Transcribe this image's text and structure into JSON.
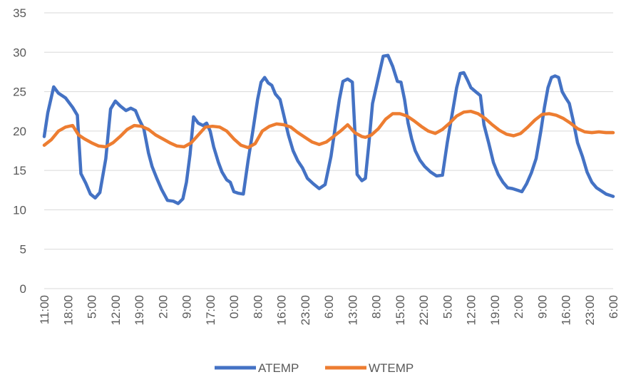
{
  "chart_data": {
    "type": "line",
    "title": "",
    "xlabel": "",
    "ylabel": "",
    "ylim": [
      0,
      35
    ],
    "yticks": [
      0,
      5,
      10,
      15,
      20,
      25,
      30,
      35
    ],
    "grid": true,
    "legend_position": "bottom",
    "x_tick_labels": [
      "11:00",
      "18:00",
      "5:00",
      "12:00",
      "19:00",
      "2:00",
      "9:00",
      "17:00",
      "0:00",
      "8:00",
      "16:00",
      "23:00",
      "6:00",
      "13:00",
      "8:00",
      "15:00",
      "22:00",
      "5:00",
      "12:00",
      "19:00",
      "2:00",
      "9:00",
      "16:00",
      "23:00",
      "6:00"
    ],
    "series": [
      {
        "name": "ATEMP",
        "color": "#4472c4",
        "x": [
          0,
          0.15,
          0.4,
          0.6,
          0.9,
          1.2,
          1.4,
          1.55,
          1.75,
          1.95,
          2.15,
          2.35,
          2.6,
          2.8,
          3.0,
          3.2,
          3.45,
          3.65,
          3.85,
          4.0,
          4.2,
          4.4,
          4.55,
          4.75,
          4.95,
          5.2,
          5.45,
          5.65,
          5.85,
          6.0,
          6.15,
          6.3,
          6.5,
          6.7,
          6.85,
          7.0,
          7.15,
          7.35,
          7.5,
          7.7,
          7.85,
          8.0,
          8.2,
          8.4,
          8.6,
          8.8,
          9.0,
          9.15,
          9.3,
          9.45,
          9.6,
          9.75,
          9.95,
          10.1,
          10.3,
          10.5,
          10.7,
          10.9,
          11.1,
          11.35,
          11.6,
          11.85,
          12.1,
          12.3,
          12.45,
          12.6,
          12.8,
          13.0,
          13.2,
          13.4,
          13.55,
          13.7,
          13.85,
          14.0,
          14.15,
          14.3,
          14.5,
          14.7,
          14.9,
          15.05,
          15.2,
          15.35,
          15.5,
          15.65,
          15.85,
          16.05,
          16.3,
          16.55,
          16.8,
          17.0,
          17.2,
          17.4,
          17.55,
          17.7,
          17.85,
          18.0,
          18.2,
          18.4,
          18.55,
          18.75,
          18.95,
          19.15,
          19.35,
          19.55,
          19.75,
          19.95,
          20.15,
          20.35,
          20.55,
          20.75,
          20.95,
          21.1,
          21.25,
          21.4,
          21.55,
          21.7,
          21.85,
          22.0,
          22.15,
          22.3,
          22.5,
          22.7,
          22.9,
          23.1,
          23.3,
          23.5,
          23.7,
          23.9,
          24.0
        ],
        "values": [
          19.3,
          22.3,
          25.6,
          24.8,
          24.2,
          23.0,
          22.0,
          14.6,
          13.4,
          12.0,
          11.5,
          12.2,
          16.5,
          22.8,
          23.8,
          23.2,
          22.6,
          22.9,
          22.6,
          21.5,
          20.3,
          17.2,
          15.5,
          14.0,
          12.6,
          11.2,
          11.1,
          10.8,
          11.4,
          13.5,
          17.0,
          21.8,
          21.0,
          20.7,
          21.0,
          20.0,
          18.0,
          16.0,
          14.8,
          13.8,
          13.5,
          12.3,
          12.1,
          12.0,
          16.2,
          20.0,
          24.0,
          26.2,
          26.8,
          26.1,
          25.8,
          24.7,
          24.0,
          22.1,
          19.5,
          17.5,
          16.2,
          15.3,
          14.0,
          13.3,
          12.7,
          13.2,
          16.8,
          21.0,
          24.0,
          26.3,
          26.6,
          26.2,
          14.5,
          13.7,
          14.0,
          18.5,
          23.5,
          25.5,
          27.5,
          29.5,
          29.6,
          28.2,
          26.3,
          26.2,
          24.0,
          21.0,
          19.0,
          17.5,
          16.3,
          15.5,
          14.8,
          14.3,
          14.4,
          18.5,
          22.0,
          25.5,
          27.3,
          27.4,
          26.5,
          25.5,
          25.0,
          24.5,
          20.8,
          18.5,
          16.0,
          14.5,
          13.5,
          12.8,
          12.7,
          12.5,
          12.3,
          13.3,
          14.7,
          16.5,
          20.0,
          23.0,
          25.5,
          26.8,
          27.0,
          26.8,
          25.0,
          24.2,
          23.5,
          21.5,
          18.5,
          16.8,
          14.8,
          13.5,
          12.8,
          12.4,
          12.0,
          11.8,
          11.7
        ]
      },
      {
        "name": "WTEMP",
        "color": "#ed7d31",
        "x": [
          0,
          0.3,
          0.6,
          0.9,
          1.2,
          1.45,
          1.7,
          2.0,
          2.3,
          2.6,
          2.9,
          3.2,
          3.5,
          3.8,
          4.1,
          4.4,
          4.7,
          5.0,
          5.3,
          5.6,
          5.9,
          6.2,
          6.5,
          6.8,
          7.1,
          7.4,
          7.7,
          8.0,
          8.3,
          8.6,
          8.9,
          9.2,
          9.5,
          9.8,
          10.1,
          10.4,
          10.7,
          11.0,
          11.3,
          11.6,
          11.9,
          12.2,
          12.5,
          12.8,
          13.1,
          13.4,
          13.55,
          13.8,
          14.1,
          14.4,
          14.7,
          15.0,
          15.3,
          15.6,
          15.9,
          16.2,
          16.5,
          16.8,
          17.1,
          17.4,
          17.7,
          18.0,
          18.3,
          18.6,
          18.9,
          19.2,
          19.5,
          19.8,
          20.1,
          20.4,
          20.7,
          21.0,
          21.3,
          21.6,
          21.9,
          22.2,
          22.5,
          22.8,
          23.1,
          23.4,
          23.7,
          24.0
        ],
        "values": [
          18.2,
          18.9,
          20.0,
          20.5,
          20.7,
          19.5,
          19.0,
          18.5,
          18.1,
          18.0,
          18.5,
          19.3,
          20.2,
          20.7,
          20.6,
          20.2,
          19.5,
          19.0,
          18.5,
          18.1,
          18.0,
          18.5,
          19.5,
          20.5,
          20.6,
          20.5,
          20.0,
          19.0,
          18.2,
          17.9,
          18.4,
          20.0,
          20.6,
          20.9,
          20.8,
          20.5,
          19.8,
          19.2,
          18.6,
          18.3,
          18.6,
          19.3,
          20.0,
          20.8,
          19.8,
          19.3,
          19.2,
          19.5,
          20.3,
          21.5,
          22.2,
          22.2,
          21.9,
          21.3,
          20.6,
          20.0,
          19.7,
          20.2,
          21.0,
          21.9,
          22.4,
          22.5,
          22.2,
          21.6,
          20.8,
          20.1,
          19.6,
          19.4,
          19.7,
          20.5,
          21.4,
          22.1,
          22.2,
          22.0,
          21.6,
          21.0,
          20.3,
          19.9,
          19.8,
          19.9,
          19.8,
          19.8
        ]
      }
    ]
  }
}
